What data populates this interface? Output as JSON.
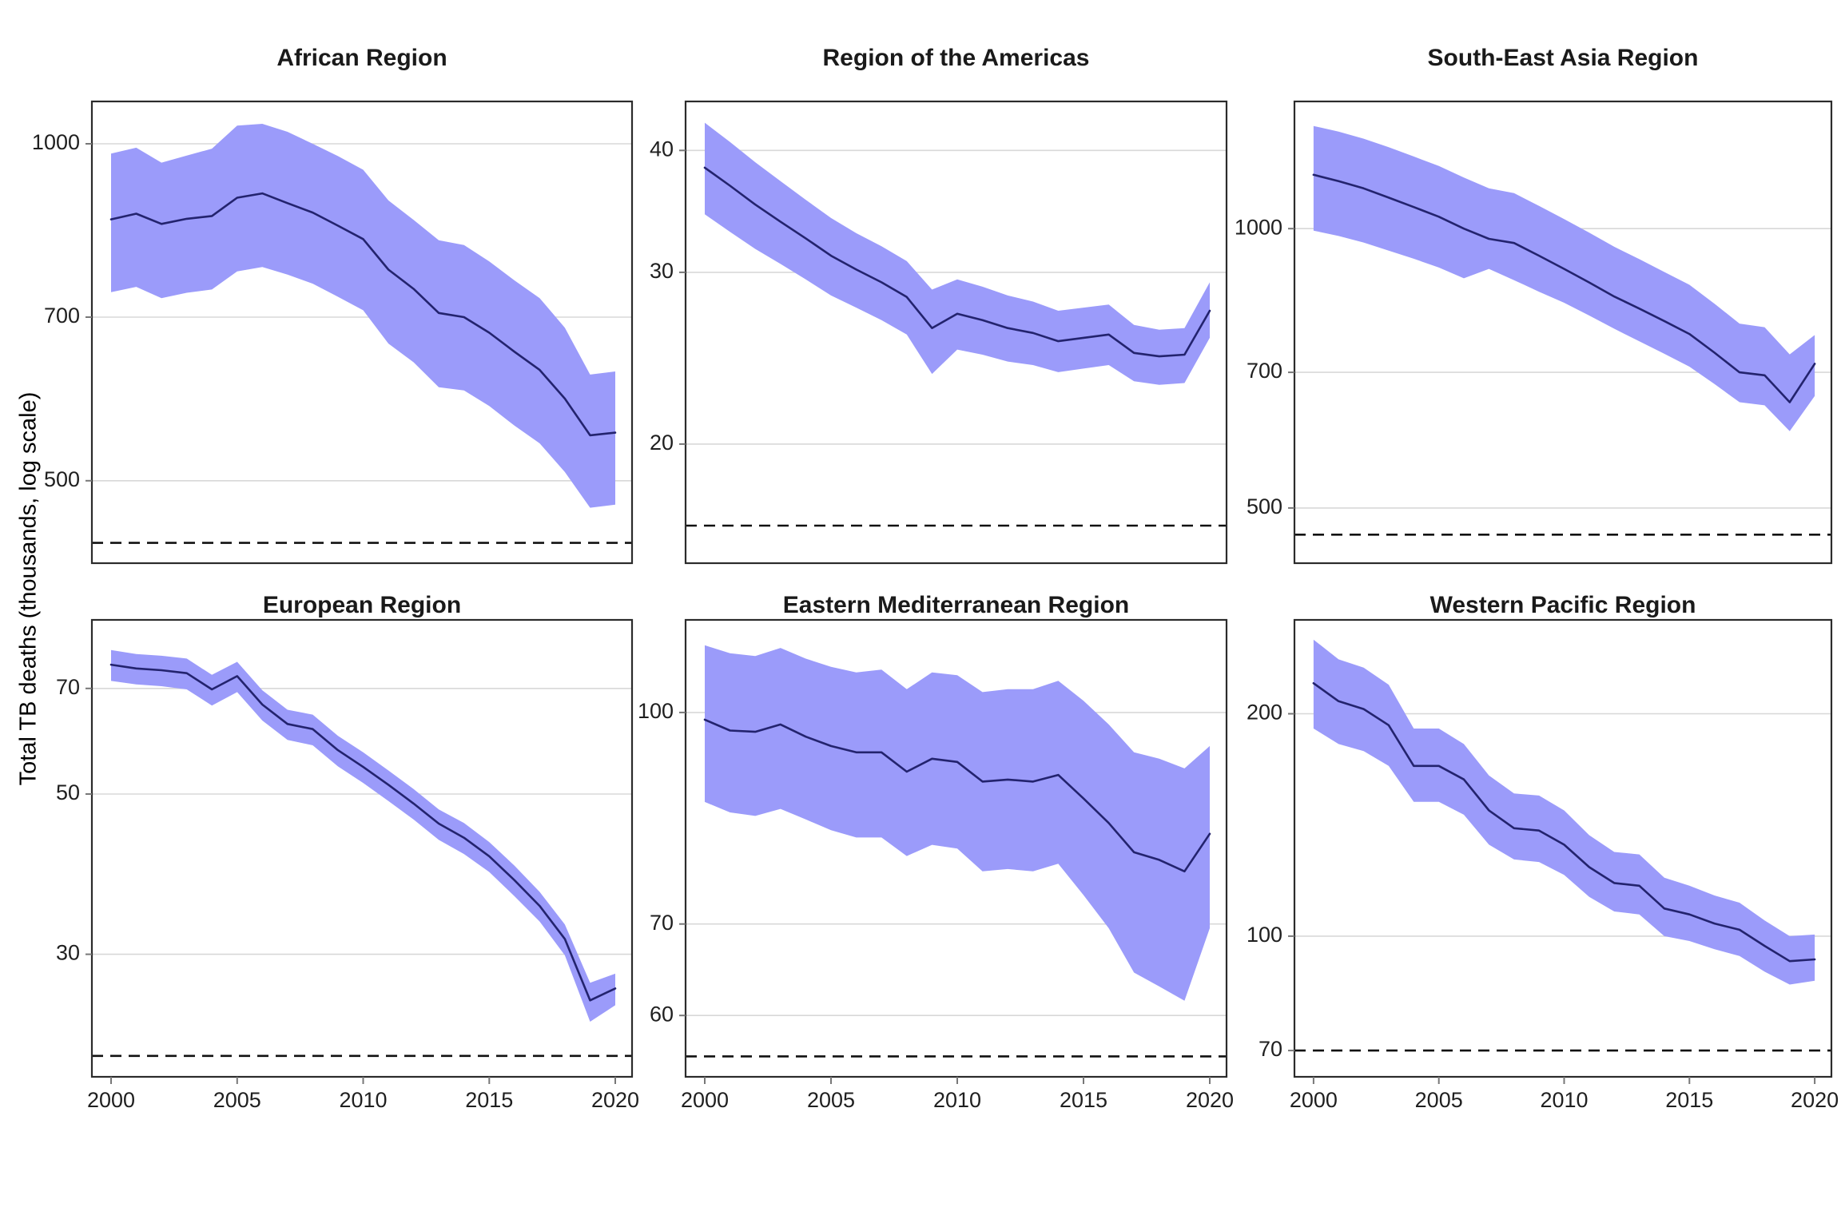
{
  "figure": {
    "y_axis_title": "Total TB deaths (thousands, log scale)",
    "background_color": "#ffffff",
    "ribbon_color": "#9b9bfa",
    "line_color": "#23236e",
    "gridline_color": "#d8d8d8",
    "panel_border_color": "#2b2b2b",
    "dashed_line_color": "#111111",
    "text_color": "#1f1f1f",
    "tick_mark_color": "#777777"
  },
  "years": [
    2000,
    2001,
    2002,
    2003,
    2004,
    2005,
    2006,
    2007,
    2008,
    2009,
    2010,
    2011,
    2012,
    2013,
    2014,
    2015,
    2016,
    2017,
    2018,
    2019,
    2020
  ],
  "chart_data": [
    {
      "type": "area",
      "title": "African Region",
      "xlabel": "",
      "ylabel": "Total TB deaths (thousands, log scale)",
      "x_range": [
        2000,
        2020
      ],
      "xticks": [
        2000,
        2005,
        2010,
        2015,
        2020
      ],
      "show_x_labels": false,
      "yticks": [
        1000,
        700,
        500
      ],
      "ylim": [
        422,
        1091
      ],
      "log_scale": true,
      "grid": "horizontal",
      "dashed_target": 440,
      "series": [
        {
          "name": "best estimate",
          "values": [
            856,
            866,
            848,
            857,
            862,
            895,
            903,
            885,
            868,
            845,
            822,
            772,
            742,
            706,
            700,
            678,
            652,
            628,
            592,
            549,
            552
          ]
        },
        {
          "name": "lower bound",
          "values": [
            737,
            745,
            728,
            736,
            741,
            769,
            776,
            764,
            750,
            730,
            710,
            663,
            638,
            606,
            602,
            583,
            560,
            540,
            509,
            473,
            476
          ]
        },
        {
          "name": "upper bound",
          "values": [
            980,
            992,
            962,
            976,
            990,
            1038,
            1042,
            1025,
            1000,
            975,
            948,
            890,
            855,
            820,
            812,
            785,
            755,
            728,
            685,
            622,
            626
          ]
        }
      ]
    },
    {
      "type": "area",
      "title": "Region of the Americas",
      "xlabel": "",
      "ylabel": "Total TB deaths (thousands, log scale)",
      "x_range": [
        2000,
        2020
      ],
      "xticks": [
        2000,
        2005,
        2010,
        2015,
        2020
      ],
      "show_x_labels": false,
      "yticks": [
        40,
        30,
        20
      ],
      "ylim": [
        15.1,
        44.9
      ],
      "log_scale": true,
      "grid": "horizontal",
      "dashed_target": 16.5,
      "series": [
        {
          "name": "best estimate",
          "values": [
            38.4,
            36.8,
            35.2,
            33.8,
            32.5,
            31.2,
            30.2,
            29.3,
            28.3,
            26.3,
            27.2,
            26.8,
            26.3,
            26.0,
            25.5,
            25.7,
            25.9,
            24.8,
            24.6,
            24.7,
            27.4
          ]
        },
        {
          "name": "lower bound",
          "values": [
            34.4,
            33.0,
            31.7,
            30.6,
            29.5,
            28.4,
            27.6,
            26.8,
            25.9,
            23.6,
            25.0,
            24.7,
            24.3,
            24.1,
            23.7,
            23.9,
            24.1,
            23.2,
            23.0,
            23.1,
            25.7
          ]
        },
        {
          "name": "upper bound",
          "values": [
            42.7,
            40.8,
            38.9,
            37.2,
            35.6,
            34.1,
            32.9,
            31.9,
            30.8,
            28.8,
            29.5,
            29.0,
            28.4,
            28.0,
            27.4,
            27.6,
            27.8,
            26.5,
            26.2,
            26.3,
            29.3
          ]
        }
      ]
    },
    {
      "type": "area",
      "title": "South-East Asia Region",
      "xlabel": "",
      "ylabel": "Total TB deaths (thousands, log scale)",
      "x_range": [
        2000,
        2020
      ],
      "xticks": [
        2000,
        2005,
        2010,
        2015,
        2020
      ],
      "show_x_labels": false,
      "yticks": [
        1000,
        700,
        500
      ],
      "ylim": [
        436,
        1371
      ],
      "log_scale": true,
      "grid": "horizontal",
      "dashed_target": 468,
      "series": [
        {
          "name": "best estimate",
          "values": [
            1143,
            1125,
            1105,
            1080,
            1055,
            1030,
            1000,
            975,
            965,
            935,
            905,
            875,
            845,
            820,
            795,
            770,
            735,
            700,
            695,
            650,
            715
          ]
        },
        {
          "name": "lower bound",
          "values": [
            995,
            982,
            966,
            947,
            928,
            908,
            884,
            905,
            880,
            855,
            832,
            806,
            780,
            756,
            733,
            710,
            680,
            650,
            645,
            605,
            660
          ]
        },
        {
          "name": "upper bound",
          "values": [
            1290,
            1272,
            1250,
            1224,
            1196,
            1168,
            1135,
            1105,
            1092,
            1058,
            1024,
            990,
            956,
            927,
            898,
            870,
            830,
            790,
            783,
            732,
            768
          ]
        }
      ]
    },
    {
      "type": "area",
      "title": "European Region",
      "xlabel": "",
      "ylabel": "Total TB deaths (thousands, log scale)",
      "x_range": [
        2000,
        2020
      ],
      "xticks": [
        2000,
        2005,
        2010,
        2015,
        2020
      ],
      "show_x_labels": true,
      "yticks": [
        70,
        50,
        30
      ],
      "ylim": [
        20.3,
        87.1
      ],
      "log_scale": true,
      "grid": "horizontal",
      "dashed_target": 21.7,
      "series": [
        {
          "name": "best estimate",
          "values": [
            75.5,
            74.6,
            74.2,
            73.5,
            69.8,
            72.8,
            66.5,
            62.5,
            61.5,
            57.5,
            54.5,
            51.5,
            48.5,
            45.5,
            43.5,
            41.0,
            38.0,
            35.0,
            31.5,
            25.9,
            26.9
          ]
        },
        {
          "name": "lower bound",
          "values": [
            71.7,
            70.9,
            70.5,
            69.8,
            66.3,
            69.2,
            63.2,
            59.4,
            58.4,
            54.6,
            51.8,
            48.9,
            46.1,
            43.2,
            41.3,
            39.0,
            36.1,
            33.3,
            29.9,
            24.2,
            25.5
          ]
        },
        {
          "name": "upper bound",
          "values": [
            79.1,
            78.1,
            77.7,
            77.0,
            73.1,
            76.2,
            69.6,
            65.4,
            64.4,
            60.2,
            57.1,
            53.9,
            50.8,
            47.6,
            45.6,
            42.9,
            39.8,
            36.6,
            33.0,
            27.4,
            28.2
          ]
        }
      ]
    },
    {
      "type": "area",
      "title": "Eastern Mediterranean Region",
      "xlabel": "",
      "ylabel": "Total TB deaths (thousands, log scale)",
      "x_range": [
        2000,
        2020
      ],
      "xticks": [
        2000,
        2005,
        2010,
        2015,
        2020
      ],
      "show_x_labels": true,
      "yticks": [
        100,
        70,
        60
      ],
      "ylim": [
        54.1,
        116.9
      ],
      "log_scale": true,
      "grid": "horizontal",
      "dashed_target": 56.0,
      "series": [
        {
          "name": "best estimate",
          "values": [
            98.8,
            97.0,
            96.8,
            98.0,
            96.0,
            94.5,
            93.5,
            93.5,
            90.5,
            92.5,
            92.0,
            89.0,
            89.3,
            89.0,
            90.0,
            86.5,
            83.0,
            79.0,
            78.0,
            76.5,
            81.5
          ]
        },
        {
          "name": "lower bound",
          "values": [
            86.0,
            84.5,
            84.0,
            85.0,
            83.5,
            82.0,
            81.0,
            81.0,
            78.5,
            80.0,
            79.5,
            76.5,
            76.8,
            76.5,
            77.5,
            73.5,
            69.5,
            64.5,
            63.0,
            61.5,
            69.5
          ]
        },
        {
          "name": "upper bound",
          "values": [
            112.0,
            110.5,
            110.0,
            111.5,
            109.5,
            108.0,
            107.0,
            107.5,
            104.0,
            107.0,
            106.5,
            103.5,
            104.0,
            104.0,
            105.5,
            102.0,
            98.0,
            93.5,
            92.5,
            91.0,
            94.5
          ]
        }
      ]
    },
    {
      "type": "area",
      "title": "Western Pacific Region",
      "xlabel": "",
      "ylabel": "Total TB deaths (thousands, log scale)",
      "x_range": [
        2000,
        2020
      ],
      "xticks": [
        2000,
        2005,
        2010,
        2015,
        2020
      ],
      "show_x_labels": true,
      "yticks": [
        200,
        100,
        70
      ],
      "ylim": [
        64.5,
        268
      ],
      "log_scale": true,
      "grid": "horizontal",
      "dashed_target": 70,
      "series": [
        {
          "name": "best estimate",
          "values": [
            220,
            208,
            203,
            193,
            170,
            170,
            163,
            148,
            140,
            139,
            133,
            124,
            118,
            117,
            109,
            107,
            104,
            102,
            97,
            92.5,
            93
          ]
        },
        {
          "name": "lower bound",
          "values": [
            191,
            182,
            178,
            170,
            152,
            152,
            146,
            133,
            127,
            126,
            121,
            113,
            108,
            107,
            100,
            98.5,
            96,
            94,
            89.5,
            86,
            87
          ]
        },
        {
          "name": "upper bound",
          "values": [
            252,
            237,
            231,
            219,
            191,
            191,
            182,
            165,
            156,
            155,
            148,
            137,
            130,
            129,
            120,
            117,
            113.5,
            111,
            105,
            100,
            100.5
          ]
        }
      ]
    }
  ]
}
